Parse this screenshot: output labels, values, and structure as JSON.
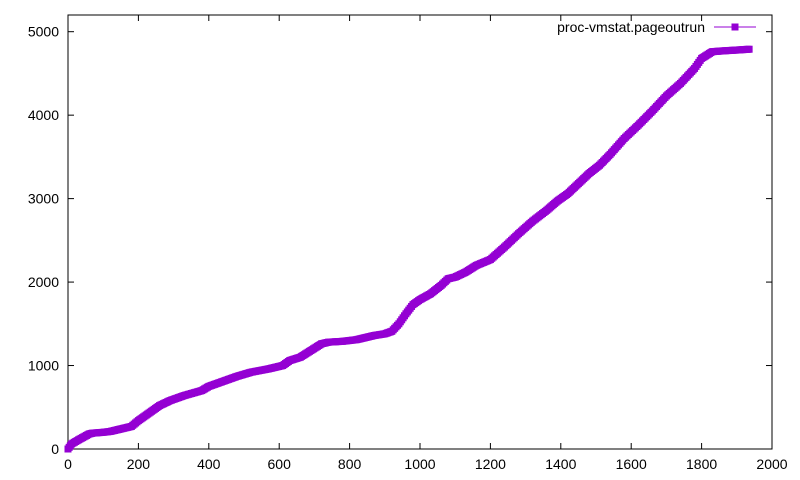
{
  "colors": {
    "series": "#9400d3",
    "axis": "#000000",
    "background": "#ffffff"
  },
  "chart_data": {
    "type": "line",
    "title": "",
    "xlabel": "",
    "ylabel": "",
    "xlim": [
      0,
      2000
    ],
    "ylim": [
      0,
      5200
    ],
    "x_ticks": [
      0,
      200,
      400,
      600,
      800,
      1000,
      1200,
      1400,
      1600,
      1800,
      2000
    ],
    "y_ticks": [
      0,
      1000,
      2000,
      3000,
      4000,
      5000
    ],
    "grid": false,
    "legend_position": "top-right",
    "marker": "square",
    "series": [
      {
        "name": "proc-vmstat.pageoutrun",
        "color": "#9400d3",
        "x": [
          0,
          10,
          30,
          60,
          70,
          100,
          120,
          140,
          150,
          180,
          200,
          230,
          260,
          290,
          330,
          380,
          400,
          440,
          480,
          520,
          570,
          610,
          630,
          660,
          690,
          720,
          740,
          780,
          820,
          850,
          870,
          900,
          920,
          940,
          960,
          980,
          1000,
          1030,
          1060,
          1080,
          1100,
          1130,
          1160,
          1200,
          1240,
          1280,
          1320,
          1360,
          1390,
          1420,
          1450,
          1480,
          1510,
          1540,
          1580,
          1620,
          1660,
          1700,
          1740,
          1780,
          1800,
          1830,
          1860,
          1900,
          1935
        ],
        "y": [
          0,
          60,
          110,
          180,
          190,
          200,
          210,
          230,
          240,
          270,
          340,
          430,
          520,
          580,
          640,
          700,
          750,
          810,
          870,
          920,
          960,
          1000,
          1060,
          1100,
          1180,
          1260,
          1280,
          1290,
          1310,
          1340,
          1360,
          1380,
          1410,
          1500,
          1620,
          1730,
          1790,
          1860,
          1960,
          2040,
          2060,
          2120,
          2200,
          2270,
          2420,
          2580,
          2730,
          2860,
          2970,
          3060,
          3180,
          3300,
          3400,
          3530,
          3720,
          3880,
          4050,
          4230,
          4380,
          4560,
          4680,
          4760,
          4770,
          4780,
          4790
        ]
      }
    ]
  }
}
